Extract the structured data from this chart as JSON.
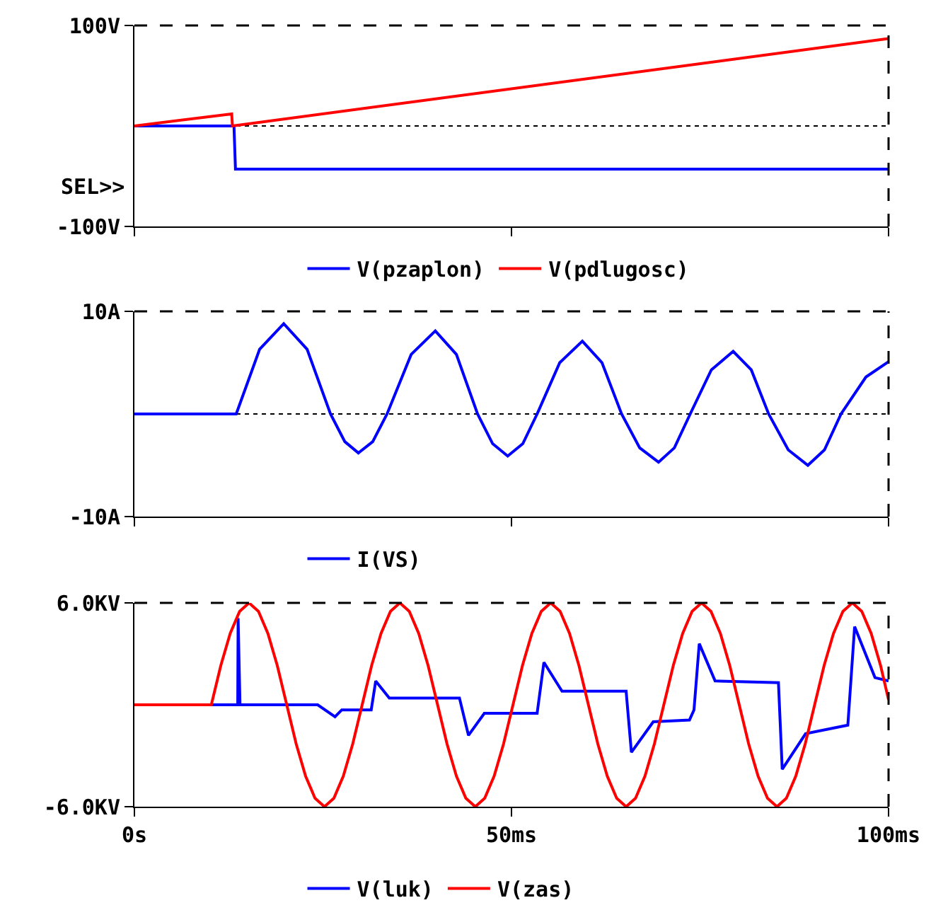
{
  "chart_data": [
    {
      "type": "line",
      "xlim": [
        0,
        100
      ],
      "xticks": [
        {
          "value": 0,
          "label": null
        },
        {
          "value": 50,
          "label": null
        },
        {
          "value": 100,
          "label": null
        }
      ],
      "ylim": [
        -100,
        100
      ],
      "yticks": [
        {
          "value": 100,
          "label": "100V"
        },
        {
          "value": -100,
          "label": "-100V"
        }
      ],
      "tick_labels": "y",
      "legend": "bottom",
      "ref_lines": [
        {
          "axis": "y",
          "value": 0,
          "line_style": "dotted",
          "color": "#000000"
        }
      ],
      "annotations": [
        "SEL>>"
      ],
      "series": [
        {
          "name": "V(pzaplon)",
          "color": "#0000ff",
          "x": [
            0,
            13.2,
            13.4,
            100
          ],
          "values": [
            0,
            0,
            -43,
            -43
          ]
        },
        {
          "name": "V(pdlugosc)",
          "color": "#ff0000",
          "x": [
            0,
            12.9,
            13,
            100
          ],
          "values": [
            0,
            12,
            0,
            87
          ]
        }
      ]
    },
    {
      "type": "line",
      "xlim": [
        0,
        100
      ],
      "xticks": [
        {
          "value": 0,
          "label": null
        },
        {
          "value": 50,
          "label": null
        },
        {
          "value": 100,
          "label": null
        }
      ],
      "ylim": [
        -10,
        10
      ],
      "yticks": [
        {
          "value": 10,
          "label": "10A"
        },
        {
          "value": -10,
          "label": "-10A"
        }
      ],
      "tick_labels": "y",
      "legend": "bottom",
      "ref_lines": [
        {
          "axis": "y",
          "value": 0,
          "line_style": "dotted",
          "color": "#000000"
        }
      ],
      "series": [
        {
          "name": "I(VS)",
          "color": "#0000ff",
          "x": [
            0,
            13.5,
            16.6,
            19.8,
            22.9,
            26,
            27.9,
            29.7,
            31.6,
            33.5,
            36.7,
            39.9,
            42.7,
            45.5,
            47.5,
            49.5,
            51.5,
            53.4,
            56.4,
            59.4,
            62,
            64.6,
            67,
            69.5,
            71.6,
            73.7,
            76.5,
            79.4,
            81.8,
            84.1,
            86.7,
            89.3,
            91.5,
            93.7,
            97,
            100
          ],
          "values": [
            0,
            0,
            6.3,
            8.8,
            6.3,
            0,
            -2.7,
            -3.8,
            -2.7,
            0,
            5.8,
            8.1,
            5.8,
            0,
            -2.9,
            -4.1,
            -2.9,
            0,
            5.0,
            7.1,
            5.0,
            0,
            -3.3,
            -4.7,
            -3.3,
            0,
            4.3,
            6.1,
            4.3,
            0,
            -3.5,
            -5.0,
            -3.5,
            0,
            3.6,
            5.1
          ]
        }
      ]
    },
    {
      "type": "line",
      "xlim": [
        0,
        100
      ],
      "xticks": [
        {
          "value": 0,
          "label": "0s"
        },
        {
          "value": 50,
          "label": "50ms"
        },
        {
          "value": 100,
          "label": "100ms"
        }
      ],
      "ylim": [
        -6,
        6
      ],
      "yticks": [
        {
          "value": 6,
          "label": "6.0KV"
        },
        {
          "value": -6,
          "label": "-6.0KV"
        }
      ],
      "legend": "bottom",
      "series": [
        {
          "name": "V(luk)",
          "color": "#0000ff",
          "x": [
            0,
            13.7,
            13.75,
            14.0,
            24.3,
            26.6,
            27.5,
            31.4,
            32.0,
            33.8,
            43.1,
            44.3,
            46.4,
            53.4,
            54.3,
            56.7,
            65.2,
            65.9,
            68.8,
            73.6,
            74.2,
            74.9,
            77.0,
            85.4,
            85.9,
            89.0,
            94.6,
            95.5,
            98.2,
            100
          ],
          "values": [
            0,
            0,
            5.1,
            0,
            0,
            -0.7,
            -0.3,
            -0.3,
            1.4,
            0.4,
            0.4,
            -1.8,
            -0.5,
            -0.5,
            2.5,
            0.8,
            0.8,
            -2.8,
            -1.0,
            -0.9,
            -0.3,
            3.6,
            1.4,
            1.3,
            -3.8,
            -1.7,
            -1.2,
            4.6,
            1.6,
            1.4
          ]
        },
        {
          "name": "V(zas)",
          "color": "#ff0000",
          "x": [
            0,
            10.2,
            11.45,
            12.7,
            13.95,
            15.2,
            16.45,
            17.7,
            18.95,
            20.2,
            21.45,
            22.7,
            23.95,
            25.2,
            26.45,
            27.7,
            28.95,
            30.2,
            31.45,
            32.7,
            33.95,
            35.2,
            36.45,
            37.7,
            38.95,
            40.2,
            41.45,
            42.7,
            43.95,
            45.2,
            46.45,
            47.7,
            48.95,
            50.2,
            51.45,
            52.7,
            53.95,
            55.2,
            56.45,
            57.7,
            58.95,
            60.2,
            61.45,
            62.7,
            63.95,
            65.2,
            66.45,
            67.7,
            68.95,
            70.2,
            71.45,
            72.7,
            73.95,
            75.2,
            76.45,
            77.7,
            78.95,
            80.2,
            81.45,
            82.7,
            83.95,
            85.2,
            86.45,
            87.7,
            88.95,
            90.2,
            91.45,
            92.7,
            93.95,
            95.2,
            96.45,
            97.7,
            98.95,
            100
          ],
          "values": [
            0,
            0,
            2.3,
            4.2,
            5.5,
            6,
            5.5,
            4.2,
            2.3,
            0,
            -2.3,
            -4.2,
            -5.5,
            -6,
            -5.5,
            -4.2,
            -2.3,
            0,
            2.3,
            4.2,
            5.5,
            6,
            5.5,
            4.2,
            2.3,
            0,
            -2.3,
            -4.2,
            -5.5,
            -6,
            -5.5,
            -4.2,
            -2.3,
            0,
            2.3,
            4.2,
            5.5,
            6,
            5.5,
            4.2,
            2.3,
            0,
            -2.3,
            -4.2,
            -5.5,
            -6,
            -5.5,
            -4.2,
            -2.3,
            0,
            2.3,
            4.2,
            5.5,
            6,
            5.5,
            4.2,
            2.3,
            0,
            -2.3,
            -4.2,
            -5.5,
            -6,
            -5.5,
            -4.2,
            -2.3,
            0,
            2.3,
            4.2,
            5.5,
            6,
            5.5,
            4.2,
            2.3,
            0.3
          ]
        }
      ]
    }
  ]
}
